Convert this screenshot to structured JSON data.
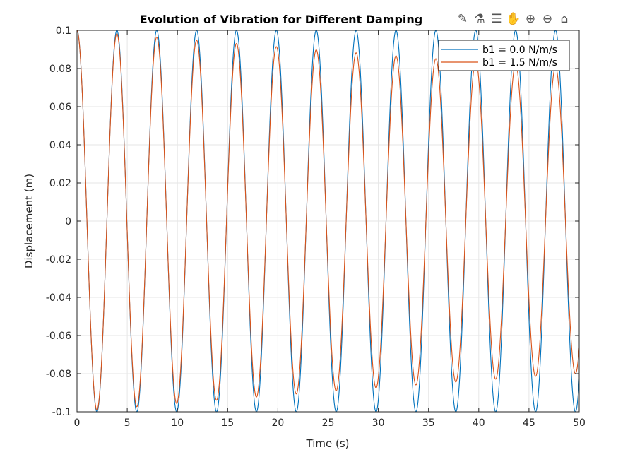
{
  "chart_data": {
    "type": "line",
    "title": "Evolution of Vibration for Different Damping",
    "xlabel": "Time (s)",
    "ylabel": "Displacement (m)",
    "xlim": [
      0,
      50
    ],
    "ylim": [
      -0.1,
      0.1
    ],
    "xticks": [
      "0",
      "5",
      "10",
      "15",
      "20",
      "25",
      "30",
      "35",
      "40",
      "45",
      "50"
    ],
    "yticks": [
      "-0.1",
      "-0.08",
      "-0.06",
      "-0.04",
      "-0.02",
      "0",
      "0.02",
      "0.04",
      "0.06",
      "0.08",
      "0.1"
    ],
    "grid": true,
    "legend_position": "top-right",
    "model": "x(t) = amplitude * exp(-decay_rate * t) * cos(2*pi*t/period)",
    "t_step": 0.02,
    "series": [
      {
        "name": "b1 = 0.0 N/m/s",
        "color": "#0072BD",
        "amplitude": 0.1,
        "period": 3.97,
        "decay_rate": 0.0
      },
      {
        "name": "b1 = 1.5 N/m/s",
        "color": "#D95319",
        "amplitude": 0.1,
        "period": 3.97,
        "decay_rate": 0.0045
      }
    ]
  },
  "toolbar": [
    "edit-icon",
    "brush-icon",
    "legend-icon",
    "pan-icon",
    "zoom-in-icon",
    "zoom-out-icon",
    "home-icon"
  ]
}
